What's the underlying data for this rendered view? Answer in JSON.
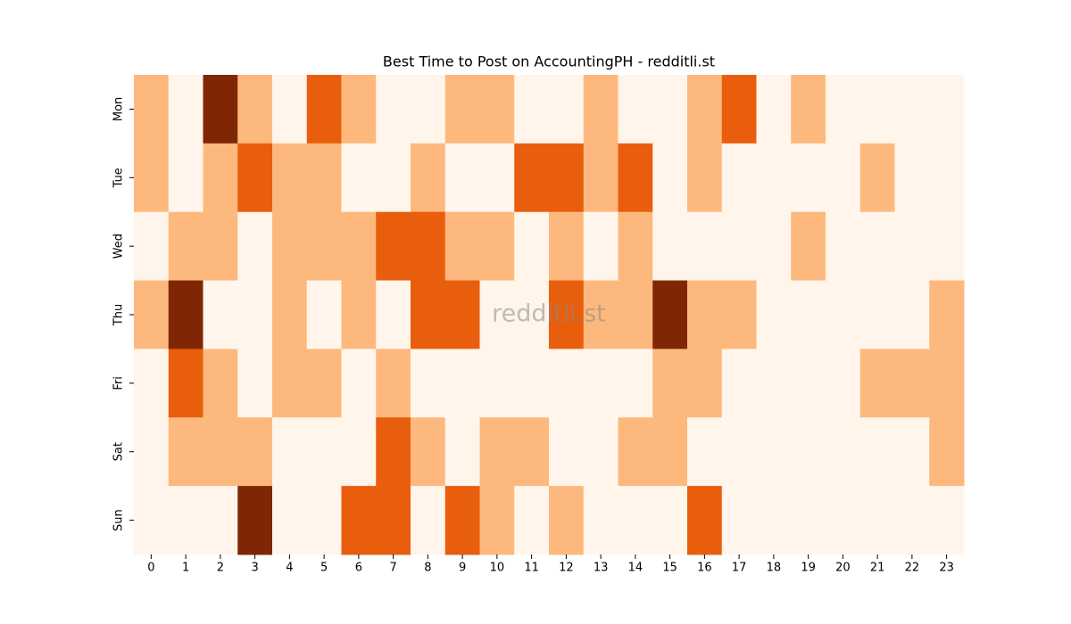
{
  "chart_data": {
    "type": "heatmap",
    "title": "Best Time to Post on AccountingPH - redditli.st",
    "watermark": "redditli.st",
    "rows": [
      "Mon",
      "Tue",
      "Wed",
      "Thu",
      "Fri",
      "Sat",
      "Sun"
    ],
    "columns": [
      0,
      1,
      2,
      3,
      4,
      5,
      6,
      7,
      8,
      9,
      10,
      11,
      12,
      13,
      14,
      15,
      16,
      17,
      18,
      19,
      20,
      21,
      22,
      23
    ],
    "values": [
      [
        1,
        0,
        3,
        1,
        0,
        2,
        1,
        0,
        0,
        1,
        1,
        0,
        0,
        1,
        0,
        0,
        1,
        2,
        0,
        1,
        0,
        0,
        0,
        0
      ],
      [
        1,
        0,
        1,
        2,
        1,
        1,
        0,
        0,
        1,
        0,
        0,
        2,
        2,
        1,
        2,
        0,
        1,
        0,
        0,
        0,
        0,
        1,
        0,
        0
      ],
      [
        0,
        1,
        1,
        0,
        1,
        1,
        1,
        2,
        2,
        1,
        1,
        0,
        1,
        0,
        1,
        0,
        0,
        0,
        0,
        1,
        0,
        0,
        0,
        0
      ],
      [
        1,
        3,
        0,
        0,
        1,
        0,
        1,
        0,
        2,
        2,
        0,
        0,
        2,
        1,
        1,
        3,
        1,
        1,
        0,
        0,
        0,
        0,
        0,
        1
      ],
      [
        0,
        2,
        1,
        0,
        1,
        1,
        0,
        1,
        0,
        0,
        0,
        0,
        0,
        0,
        0,
        1,
        1,
        0,
        0,
        0,
        0,
        1,
        1,
        1
      ],
      [
        0,
        1,
        1,
        1,
        0,
        0,
        0,
        2,
        1,
        0,
        1,
        1,
        0,
        0,
        1,
        1,
        0,
        0,
        0,
        0,
        0,
        0,
        0,
        1
      ],
      [
        0,
        0,
        0,
        3,
        0,
        0,
        2,
        2,
        0,
        2,
        1,
        0,
        1,
        0,
        0,
        0,
        2,
        0,
        0,
        0,
        0,
        0,
        0,
        0
      ]
    ],
    "colors": [
      "#fff5eb",
      "#fdb97d",
      "#e95e0d",
      "#7f2704"
    ]
  }
}
